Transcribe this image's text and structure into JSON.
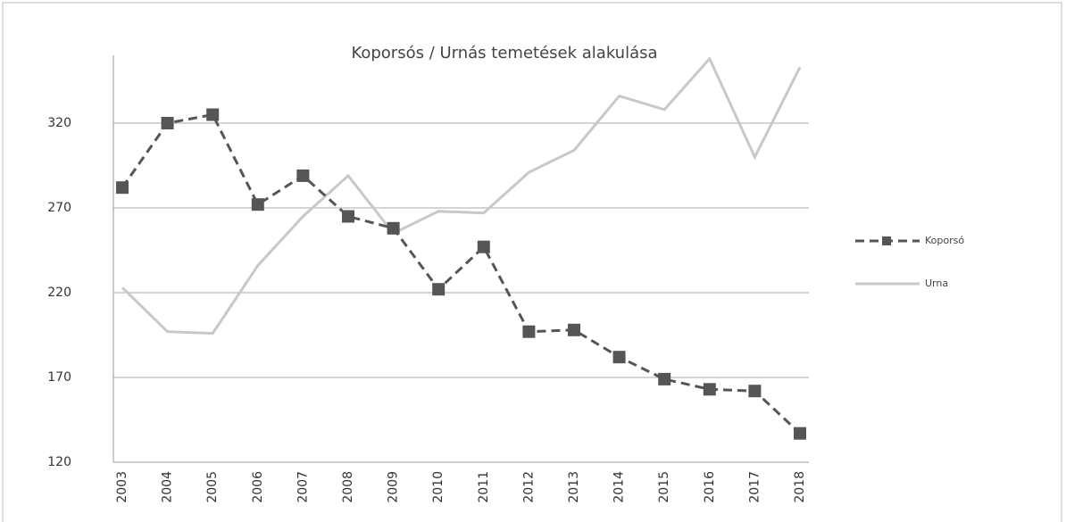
{
  "chart_data": {
    "type": "line",
    "title": "Koporsós / Urnás  temetések alakulása",
    "categories": [
      "2003",
      "2004",
      "2005",
      "2006",
      "2007",
      "2008",
      "2009",
      "2010",
      "2011",
      "2012",
      "2013",
      "2014",
      "2015",
      "2016",
      "2017",
      "2018"
    ],
    "series": [
      {
        "name": "Koporsó",
        "color": "#555555",
        "dashed": true,
        "marker": "square",
        "values": [
          282,
          320,
          325,
          272,
          289,
          265,
          258,
          222,
          247,
          197,
          198,
          182,
          169,
          163,
          162,
          137
        ]
      },
      {
        "name": "Urna",
        "color": "#c8c8c8",
        "dashed": false,
        "marker": "none",
        "values": [
          223,
          197,
          196,
          236,
          265,
          289,
          255,
          268,
          267,
          291,
          304,
          336,
          328,
          358,
          300,
          353
        ]
      }
    ],
    "ylim": [
      120,
      360
    ],
    "yticks": [
      120,
      170,
      220,
      270,
      320
    ],
    "grid": true,
    "legend": "right"
  }
}
